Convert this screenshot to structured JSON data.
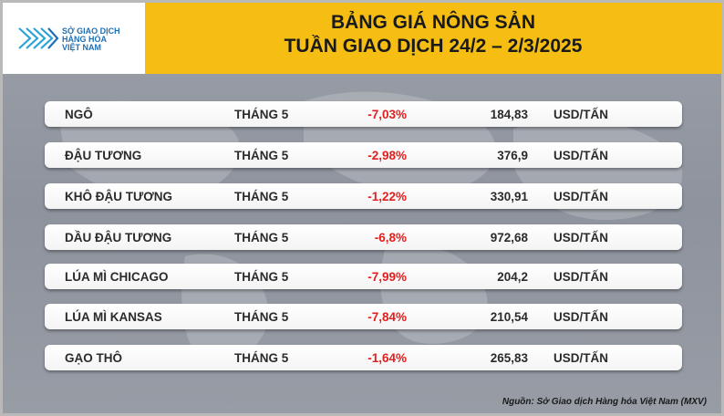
{
  "logo": {
    "line1": "SỞ GIAO DỊCH",
    "line2": "HÀNG HÓA",
    "line3": "VIỆT NAM"
  },
  "title": {
    "line1": "BẢNG GIÁ NÔNG SẢN",
    "line2": "TUẦN GIAO DỊCH 24/2 – 2/3/2025"
  },
  "colors": {
    "header": "#f6bd12",
    "negative": "#e0201f",
    "logo_blue": "#1f6fb5"
  },
  "rows": [
    {
      "name": "NGÔ",
      "month": "THÁNG 5",
      "change": "-7,03%",
      "price": "184,83",
      "unit": "USD/TẤN"
    },
    {
      "name": "ĐẬU TƯƠNG",
      "month": "THÁNG 5",
      "change": "-2,98%",
      "price": "376,9",
      "unit": "USD/TẤN"
    },
    {
      "name": "KHÔ ĐẬU TƯƠNG",
      "month": "THÁNG 5",
      "change": "-1,22%",
      "price": "330,91",
      "unit": "USD/TẤN"
    },
    {
      "name": "DẦU ĐẬU TƯƠNG",
      "month": "THÁNG 5",
      "change": "-6,8%",
      "price": "972,68",
      "unit": "USD/TẤN"
    },
    {
      "name": "LÚA MÌ CHICAGO",
      "month": "THÁNG 5",
      "change": "-7,99%",
      "price": "204,2",
      "unit": "USD/TẤN"
    },
    {
      "name": "LÚA MÌ KANSAS",
      "month": "THÁNG 5",
      "change": "-7,84%",
      "price": "210,54",
      "unit": "USD/TẤN"
    },
    {
      "name": "GẠO THÔ",
      "month": "THÁNG 5",
      "change": "-1,64%",
      "price": "265,83",
      "unit": "USD/TẤN"
    }
  ],
  "source": "Nguồn: Sở Giao dịch Hàng hóa Việt Nam (MXV)"
}
